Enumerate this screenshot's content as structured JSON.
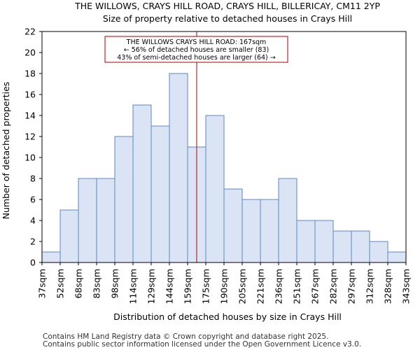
{
  "chart_data": {
    "type": "bar",
    "title": "THE WILLOWS, CRAYS HILL ROAD, CRAYS HILL, BILLERICAY, CM11 2YP",
    "subtitle": "Size of property relative to detached houses in Crays Hill",
    "xlabel": "Distribution of detached houses by size in Crays Hill",
    "ylabel": "Number of detached properties",
    "bin_edges": [
      37,
      52,
      68,
      83,
      98,
      114,
      129,
      144,
      159,
      175,
      190,
      205,
      221,
      236,
      251,
      267,
      282,
      297,
      312,
      328,
      343
    ],
    "tick_labels": [
      "37sqm",
      "52sqm",
      "68sqm",
      "83sqm",
      "98sqm",
      "114sqm",
      "129sqm",
      "144sqm",
      "159sqm",
      "175sqm",
      "190sqm",
      "205sqm",
      "221sqm",
      "236sqm",
      "251sqm",
      "267sqm",
      "282sqm",
      "297sqm",
      "312sqm",
      "328sqm",
      "343sqm"
    ],
    "values": [
      1,
      5,
      8,
      8,
      12,
      15,
      13,
      18,
      11,
      14,
      7,
      6,
      6,
      8,
      4,
      4,
      3,
      3,
      2,
      1
    ],
    "ylim": [
      0,
      22
    ],
    "yticks": [
      0,
      2,
      4,
      6,
      8,
      10,
      12,
      14,
      16,
      18,
      20,
      22
    ],
    "property_marker": {
      "value": 167,
      "label_lines": [
        "THE WILLOWS CRAYS HILL ROAD: 167sqm",
        "← 56% of detached houses are smaller (83)",
        "43% of semi-detached houses are larger (64) →"
      ]
    },
    "colors": {
      "bar_fill": "#dae4f4",
      "bar_edge": "#5b87c5",
      "marker": "#aa0000",
      "axis": "#000000"
    }
  },
  "footer": {
    "line1": "Contains HM Land Registry data © Crown copyright and database right 2025.",
    "line2": "Contains public sector information licensed under the Open Government Licence v3.0."
  }
}
